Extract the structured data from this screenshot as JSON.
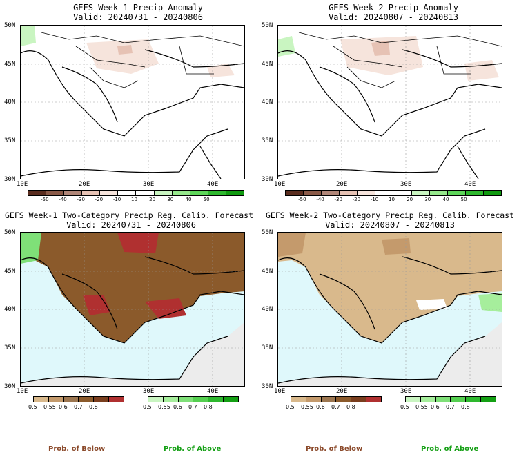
{
  "panels": [
    {
      "title": "GEFS Week-1 Precip Anomaly",
      "valid": "Valid: 20240731 - 20240806"
    },
    {
      "title": "GEFS Week-2 Precip Anomaly",
      "valid": "Valid: 20240807 - 20240813"
    },
    {
      "title": "GEFS Week-1 Two-Category Precip Reg. Calib. Forecast",
      "valid": "Valid: 20240731 - 20240806"
    },
    {
      "title": "GEFS Week-2 Two-Category Precip Reg. Calib. Forecast",
      "valid": "Valid: 20240807 - 20240813"
    }
  ],
  "lat_labels": [
    "50N",
    "45N",
    "40N",
    "35N",
    "30N"
  ],
  "lon_labels": [
    "10E",
    "20E",
    "30E",
    "40E"
  ],
  "anomaly_colorbar": {
    "labels": [
      "-50",
      "-40",
      "-30",
      "-20",
      "-10",
      "10",
      "20",
      "30",
      "40",
      "50"
    ],
    "colors": [
      "#5a2d1f",
      "#8a5a48",
      "#b08678",
      "#e6c2b4",
      "#f6e4dc",
      "#ffffff",
      "#ffffff",
      "#c9f5c1",
      "#96e88c",
      "#5ed65a",
      "#2eb82e",
      "#109a10"
    ]
  },
  "below_colorbar": {
    "labels": [
      "0.5",
      "0.55",
      "0.6",
      "0.7",
      "0.8"
    ],
    "colors": [
      "#d9b98c",
      "#c49a6c",
      "#9c7650",
      "#8b5a2b",
      "#7a3e1e",
      "#b03030"
    ]
  },
  "above_colorbar": {
    "labels": [
      "0.5",
      "0.55",
      "0.6",
      "0.7",
      "0.8"
    ],
    "colors": [
      "#c9f5c1",
      "#a6ee9c",
      "#7fe078",
      "#55cf50",
      "#2eb82e",
      "#14a014"
    ]
  },
  "legend": {
    "below": "Prob. of Below",
    "above": "Prob. of Above"
  },
  "colors": {
    "sea_prob": "#dff8fb",
    "land_nodata": "#ececec",
    "below_text": "#8b4a2b",
    "above_text": "#16a016"
  }
}
